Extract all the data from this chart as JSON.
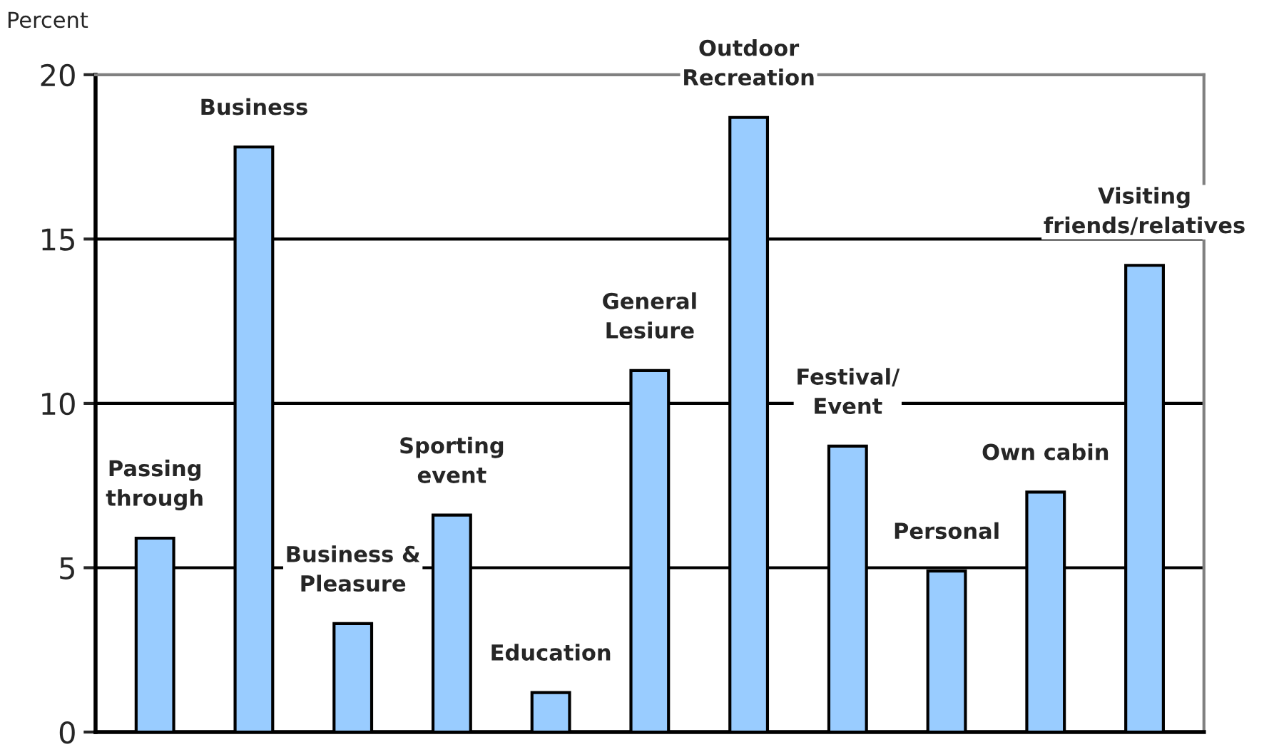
{
  "chart_data": {
    "type": "bar",
    "ylabel": "Percent",
    "categories": [
      "Passing\nthrough",
      "Business",
      "Business &\nPleasure",
      "Sporting\nevent",
      "Education",
      "General\nLesiure",
      "Outdoor\nRecreation",
      "Festival/\nEvent",
      "Personal",
      "Own cabin",
      "Visiting\nfriends/relatives"
    ],
    "values": [
      5.9,
      17.8,
      3.3,
      6.6,
      1.2,
      11.0,
      18.7,
      8.7,
      4.9,
      7.3,
      14.2
    ],
    "color": "#99ccff",
    "ylim": [
      0,
      20
    ],
    "yticks": [
      0,
      5,
      10,
      15,
      20
    ],
    "grid": "y",
    "tick_labels": "y"
  }
}
